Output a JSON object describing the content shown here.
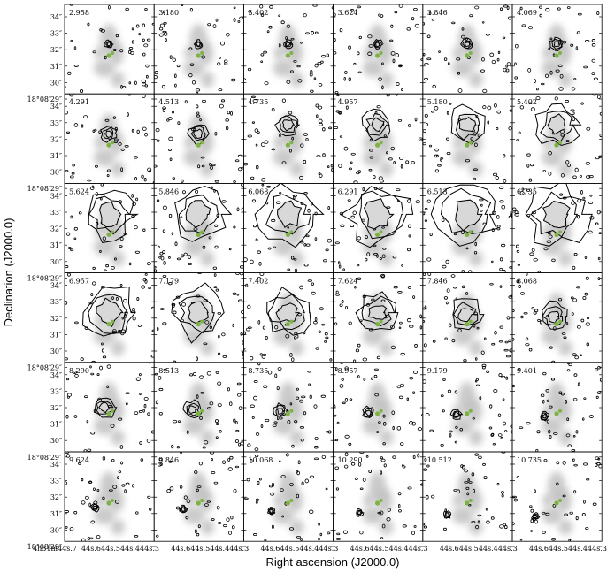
{
  "x_label": "Right ascension (J2000.0)",
  "y_label": "Declination (J2000.0)",
  "x_origin_label": "4h31m44s.7",
  "x_ticks": [
    "44s.6",
    "44s.5",
    "44s.4",
    "44s.3"
  ],
  "y_ticks": [
    "34″",
    "33″",
    "32″",
    "31″",
    "30″",
    "18°08′29″"
  ],
  "panels": [
    "2.958",
    "3.180",
    "3.402",
    "3.624",
    "3.846",
    "4.069",
    "4.291",
    "4.513",
    "4.735",
    "4.957",
    "5.180",
    "5.402",
    "5.624",
    "5.846",
    "6.068",
    "6.291",
    "6.513",
    "6.735",
    "6.957",
    "7.179",
    "7.402",
    "7.624",
    "7.846",
    "8.068",
    "8.290",
    "8.513",
    "8.735",
    "8.957",
    "9.179",
    "9.401",
    "9.624",
    "9.846",
    "10.068",
    "10.290",
    "10.512",
    "10.735"
  ]
}
